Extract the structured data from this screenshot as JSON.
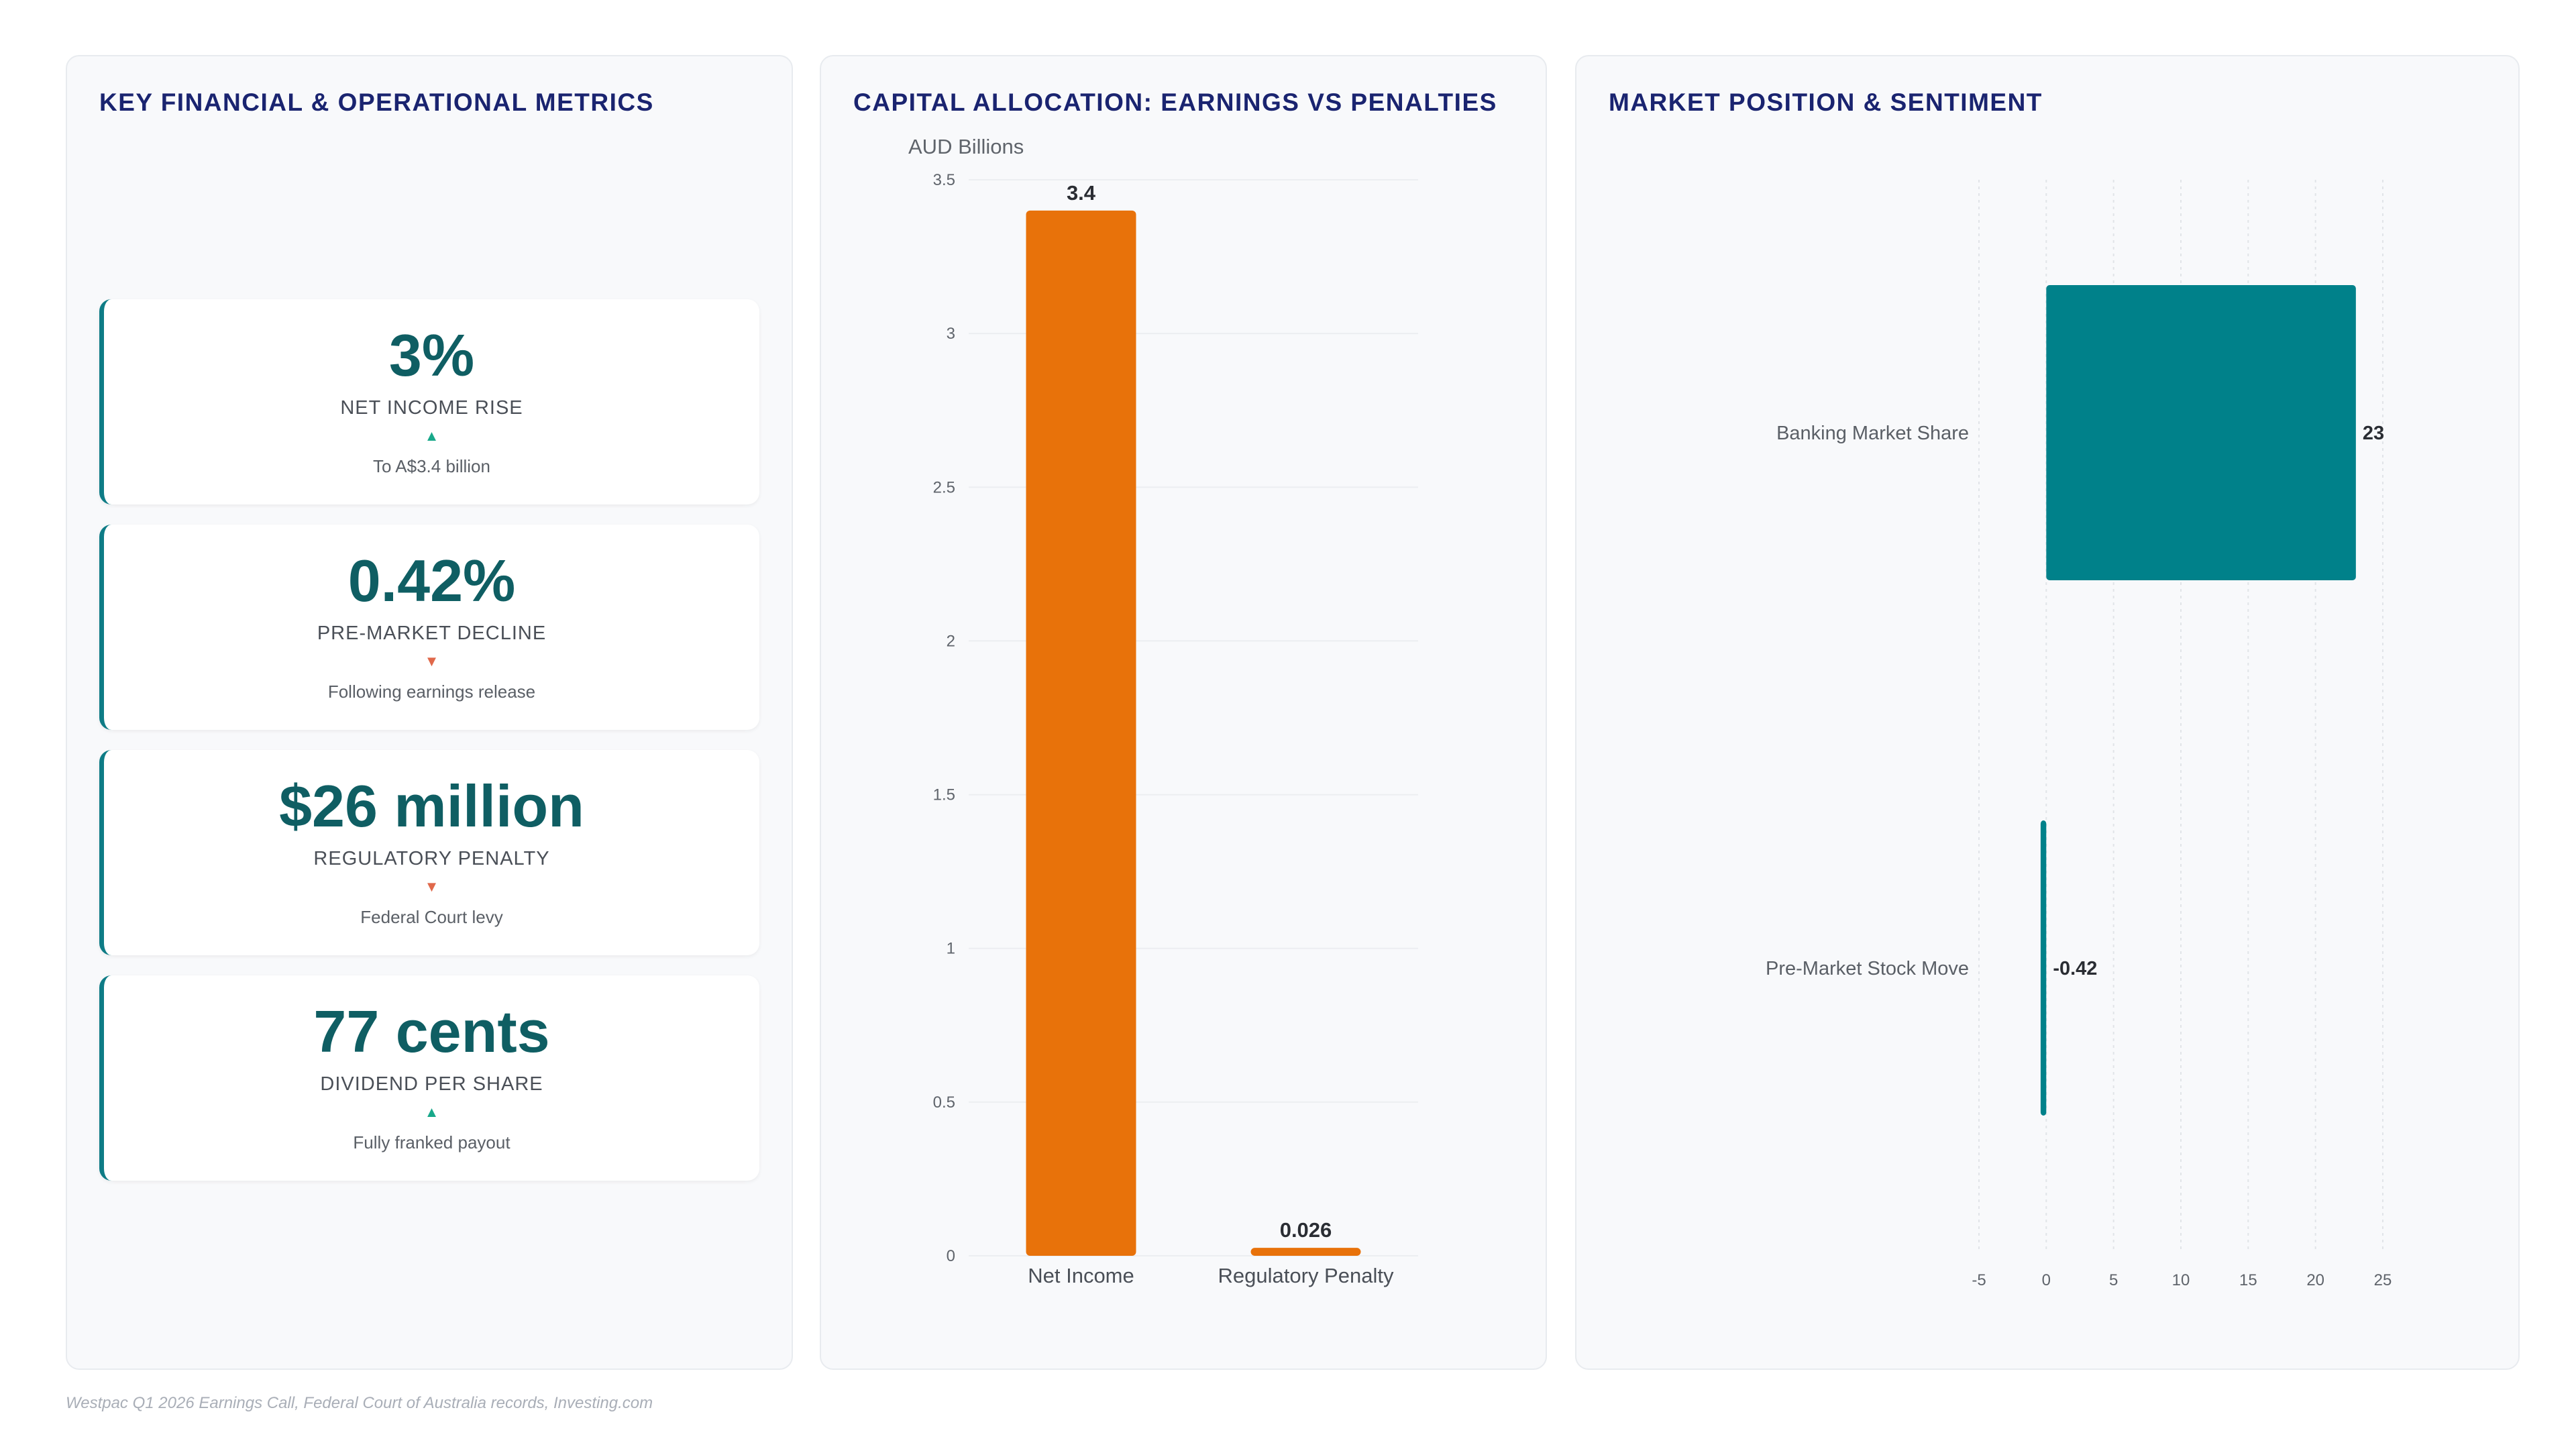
{
  "panels": {
    "metrics": {
      "title": "KEY FINANCIAL & OPERATIONAL METRICS"
    },
    "capital": {
      "title": "CAPITAL ALLOCATION: EARNINGS VS PENALTIES"
    },
    "market": {
      "title": "MARKET POSITION & SENTIMENT"
    }
  },
  "metrics": [
    {
      "value": "3%",
      "label": "NET INCOME RISE",
      "trend": "up",
      "arrow": "▲",
      "sub": "To A$3.4 billion"
    },
    {
      "value": "0.42%",
      "label": "PRE-MARKET DECLINE",
      "trend": "down",
      "arrow": "▼",
      "sub": "Following earnings release"
    },
    {
      "value": "$26 million",
      "label": "REGULATORY PENALTY",
      "trend": "down",
      "arrow": "▼",
      "sub": "Federal Court levy"
    },
    {
      "value": "77 cents",
      "label": "DIVIDEND PER SHARE",
      "trend": "up",
      "arrow": "▲",
      "sub": "Fully franked payout"
    }
  ],
  "chart_data": [
    {
      "type": "bar",
      "orientation": "vertical",
      "ylabel": "AUD Billions",
      "categories": [
        "Net Income",
        "Regulatory Penalty"
      ],
      "values": [
        3.4,
        0.026
      ],
      "data_labels": [
        "3.4",
        "0.026"
      ],
      "ylim": [
        0,
        3.5
      ],
      "yticks": [
        0,
        0.5,
        1,
        1.5,
        2,
        2.5,
        3,
        3.5
      ],
      "ytick_labels": [
        "0",
        "0.5",
        "1",
        "1.5",
        "2",
        "2.5",
        "3",
        "3.5"
      ],
      "color": "#e8720a",
      "grid": true
    },
    {
      "type": "bar",
      "orientation": "horizontal",
      "categories": [
        "Banking Market Share",
        "Pre-Market Stock Move"
      ],
      "values": [
        23,
        -0.42
      ],
      "data_labels": [
        "23",
        "-0.42"
      ],
      "xlim": [
        -5,
        25
      ],
      "xticks": [
        -5,
        0,
        5,
        10,
        15,
        20,
        25
      ],
      "xtick_labels": [
        "-5",
        "0",
        "5",
        "10",
        "15",
        "20",
        "25"
      ],
      "color": "#00818a",
      "grid": true
    }
  ],
  "footer": {
    "source": "Westpac Q1 2026 Earnings Call, Federal Court of Australia records, Investing.com"
  }
}
